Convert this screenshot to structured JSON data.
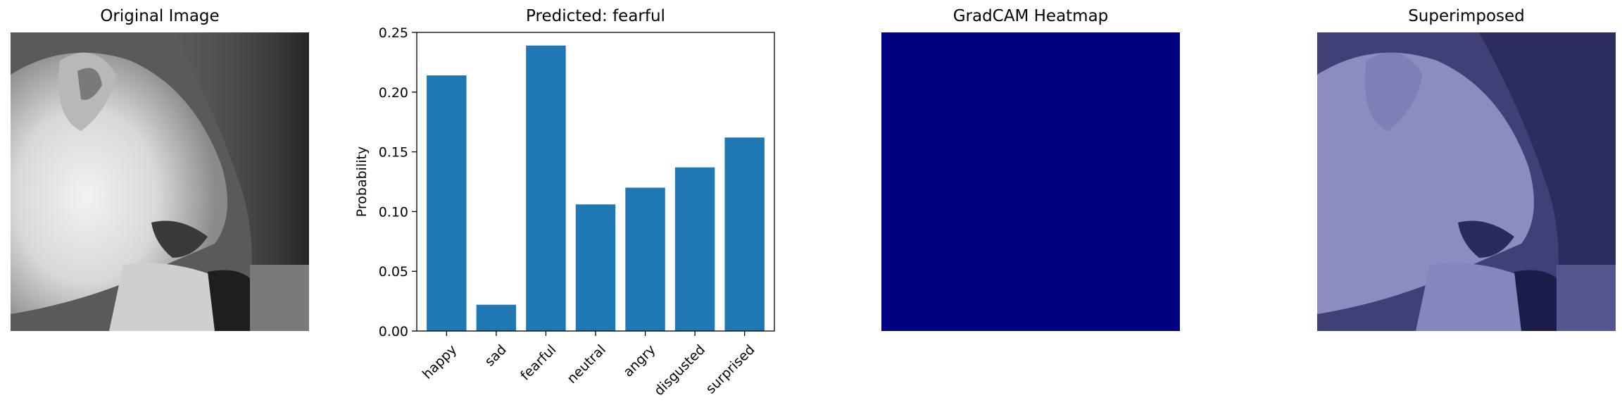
{
  "panels": {
    "original_title": "Original Image",
    "heatmap_title": "GradCAM Heatmap",
    "superimposed_title": "Superimposed"
  },
  "colors": {
    "bar": "#1f77b4",
    "heatmap": "#000080",
    "overlay_tint": "#2a2a80"
  },
  "chart_data": {
    "type": "bar",
    "title": "Predicted: fearful",
    "xlabel": "",
    "ylabel": "Probability",
    "categories": [
      "happy",
      "sad",
      "fearful",
      "neutral",
      "angry",
      "disgusted",
      "surprised"
    ],
    "values": [
      0.214,
      0.022,
      0.239,
      0.106,
      0.12,
      0.137,
      0.162
    ],
    "ylim": [
      0,
      0.25
    ],
    "yticks": [
      "0.00",
      "0.05",
      "0.10",
      "0.15",
      "0.20",
      "0.25"
    ],
    "ytick_values": [
      0,
      0.05,
      0.1,
      0.15,
      0.2,
      0.25
    ],
    "grid": false,
    "legend": "none"
  }
}
